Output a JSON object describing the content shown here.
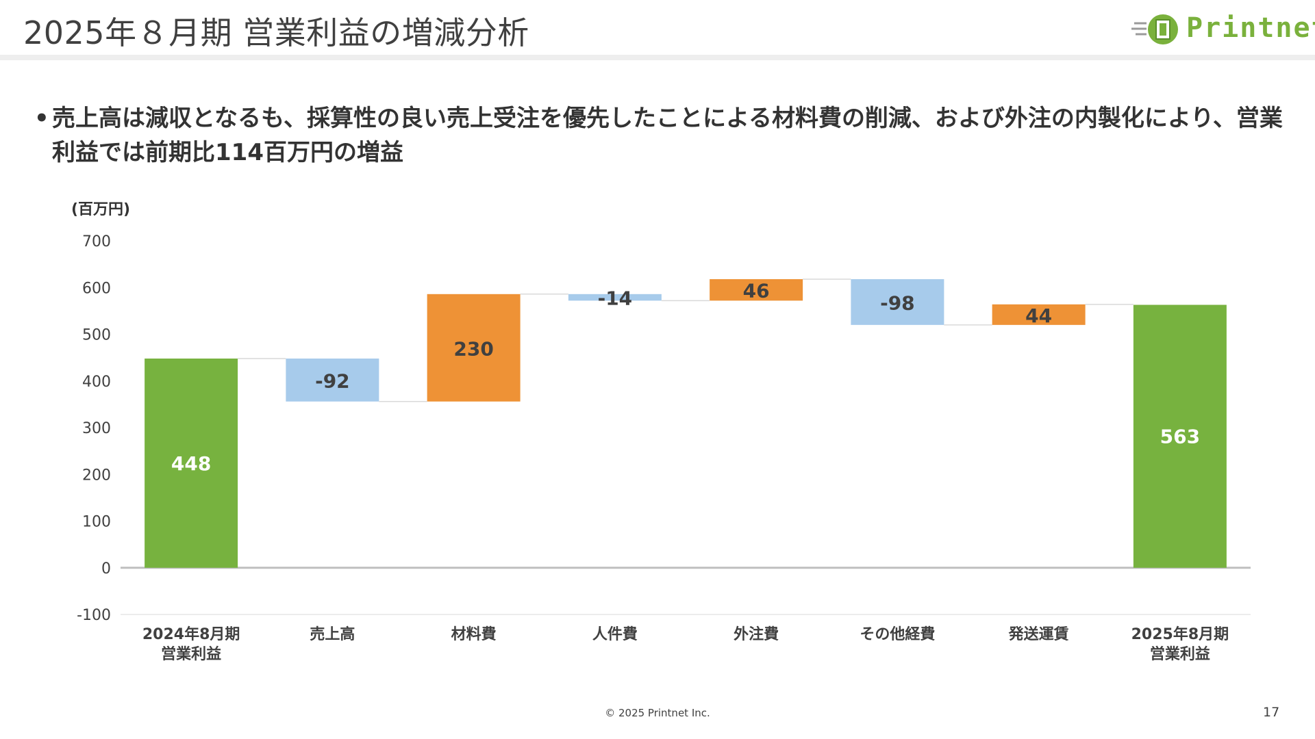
{
  "slide": {
    "title": "2025年８月期 営業利益の増減分析",
    "logo_text": "Printnet",
    "bullet_marker": "•",
    "bullet": "売上高は減収となるも、採算性の良い売上受注を優先したことによる材料費の削減、および外注の内製化により、営業利益では前期比114百万円の増益",
    "footer": "© 2025 Printnet Inc.",
    "page_number": "17"
  },
  "colors": {
    "total": "#77b23f",
    "increase": "#ee9236",
    "decrease": "#a7cbeb",
    "logo": "#7ab13c"
  },
  "chart_data": {
    "type": "bar",
    "subtype": "waterfall",
    "unit_label": "(百万円)",
    "ylim": [
      -100,
      700
    ],
    "yticks": [
      700,
      600,
      500,
      400,
      300,
      200,
      100,
      0,
      -100
    ],
    "grid": false,
    "categories": [
      [
        "2024年8月期",
        "営業利益"
      ],
      [
        "売上高"
      ],
      [
        "材料費"
      ],
      [
        "人件費"
      ],
      [
        "外注費"
      ],
      [
        "その他経費"
      ],
      [
        "発送運賃"
      ],
      [
        "2025年8月期",
        "営業利益"
      ]
    ],
    "values": [
      448,
      -92,
      230,
      -14,
      46,
      -98,
      44,
      563
    ],
    "kinds": [
      "total",
      "decrease",
      "increase",
      "decrease",
      "increase",
      "decrease",
      "increase",
      "total"
    ],
    "labels": [
      "448",
      "-92",
      "230",
      "-14",
      "46",
      "-98",
      "44",
      "563"
    ]
  }
}
